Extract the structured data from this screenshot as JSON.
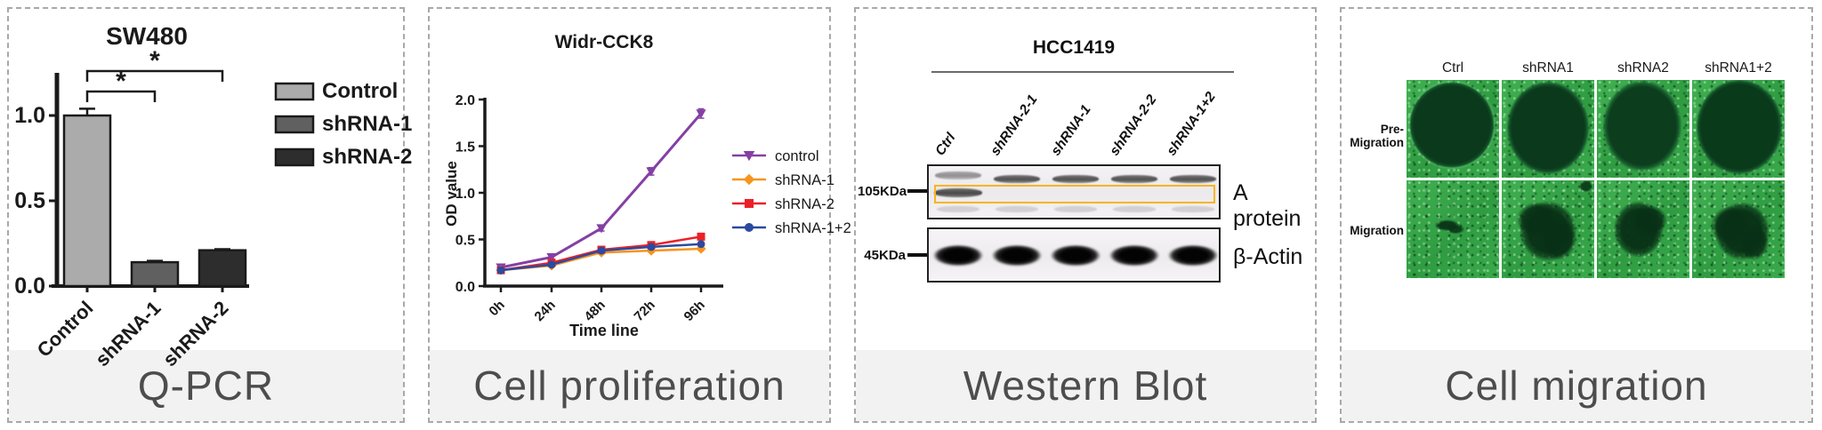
{
  "panels": {
    "qpcr": {
      "caption": "Q-PCR"
    },
    "proliferation": {
      "caption": "Cell proliferation"
    },
    "western": {
      "caption": "Western Blot",
      "cell_line": "HCC1419",
      "lanes": [
        "Ctrl",
        "shRNA-2-1",
        "shRNA-1",
        "shRNA-2-2",
        "shRNA-1+2"
      ],
      "marker_labels": [
        "105KDa",
        "45KDa"
      ],
      "band_labels": [
        "A protein",
        "β-Actin"
      ],
      "highlight_color": "#F6B51F"
    },
    "migration": {
      "caption": "Cell migration",
      "columns": [
        "Ctrl",
        "shRNA1",
        "shRNA2",
        "shRNA1+2"
      ],
      "rows": [
        "Pre-Migration",
        "Migration"
      ]
    }
  },
  "chart_data": [
    {
      "type": "bar",
      "title": "SW480",
      "categories": [
        "Control",
        "shRNA-1",
        "shRNA-2"
      ],
      "values": [
        1.0,
        0.14,
        0.21
      ],
      "errors": [
        0.04,
        0.008,
        0.006
      ],
      "bar_colors": [
        "#ABABAB",
        "#606060",
        "#2D2D2D"
      ],
      "yticks": [
        0.0,
        0.5,
        1.0
      ],
      "ylim": [
        0,
        1.25
      ],
      "legend": [
        "Control",
        "shRNA-1",
        "shRNA-2"
      ],
      "legend_position": "right",
      "grid": false,
      "significance": [
        {
          "from": "Control",
          "to": "shRNA-1",
          "label": "*"
        },
        {
          "from": "Control",
          "to": "shRNA-2",
          "label": "*"
        }
      ]
    },
    {
      "type": "line",
      "title": "Widr-CCK8",
      "xlabel": "Time line",
      "ylabel": "OD value",
      "categories": [
        "0h",
        "24h",
        "48h",
        "72h",
        "96h"
      ],
      "yticks": [
        0.0,
        0.5,
        1.0,
        1.5,
        2.0
      ],
      "ylim": [
        0,
        2.0
      ],
      "grid": false,
      "legend_position": "right",
      "series": [
        {
          "name": "control",
          "color": "#8440A4",
          "marker": "triangle-down",
          "values": [
            0.2,
            0.31,
            0.62,
            1.23,
            1.85
          ],
          "errors": [
            0.02,
            0.02,
            0.03,
            0.04,
            0.05
          ]
        },
        {
          "name": "shRNA-1",
          "color": "#F7941E",
          "marker": "diamond",
          "values": [
            0.17,
            0.22,
            0.36,
            0.38,
            0.4
          ],
          "errors": [
            0.015,
            0.015,
            0.015,
            0.02,
            0.02
          ]
        },
        {
          "name": "shRNA-2",
          "color": "#EC2027",
          "marker": "square",
          "values": [
            0.17,
            0.25,
            0.39,
            0.44,
            0.53
          ],
          "errors": [
            0.015,
            0.015,
            0.015,
            0.02,
            0.03
          ]
        },
        {
          "name": "shRNA-1+2",
          "color": "#2B4AA0",
          "marker": "circle",
          "values": [
            0.17,
            0.23,
            0.38,
            0.42,
            0.45
          ],
          "errors": [
            0.015,
            0.015,
            0.015,
            0.02,
            0.02
          ]
        }
      ]
    }
  ]
}
